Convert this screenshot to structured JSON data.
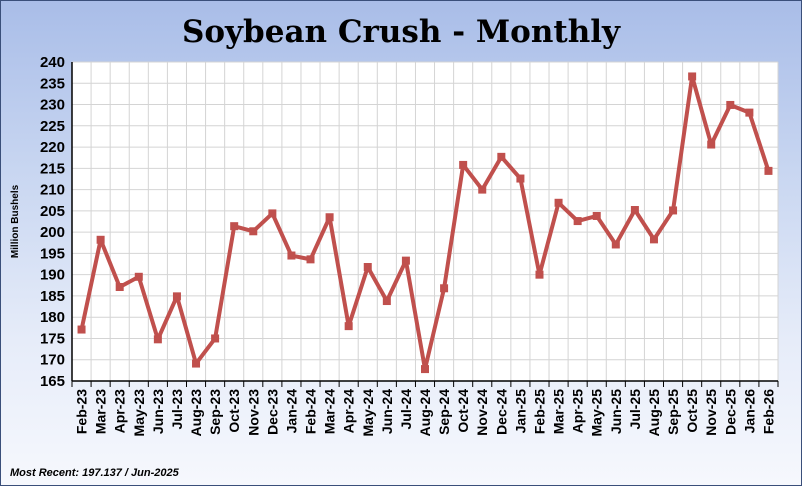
{
  "chart_data": {
    "type": "line",
    "title": "Soybean Crush - Monthly",
    "xlabel": "",
    "ylabel": "Million Bushels",
    "ylim": [
      165,
      240
    ],
    "yticks": [
      165,
      170,
      175,
      180,
      185,
      190,
      195,
      200,
      205,
      210,
      215,
      220,
      225,
      230,
      235,
      240
    ],
    "grid": true,
    "legend": "none",
    "line_color": "#c0504d",
    "categories": [
      "Feb-23",
      "Mar-23",
      "Apr-23",
      "May-23",
      "Jun-23",
      "Jul-23",
      "Aug-23",
      "Sep-23",
      "Oct-23",
      "Nov-23",
      "Dec-23",
      "Jan-24",
      "Feb-24",
      "Mar-24",
      "Apr-24",
      "May-24",
      "Jun-24",
      "Jul-24",
      "Aug-24",
      "Sep-24",
      "Oct-24",
      "Nov-24",
      "Dec-24",
      "Jan-25",
      "Feb-25",
      "Mar-25",
      "Apr-25",
      "May-25",
      "Jun-25",
      "Jul-25",
      "Aug-25",
      "Sep-25",
      "Oct-25",
      "Nov-25",
      "Dec-25",
      "Jan-26",
      "Feb-26"
    ],
    "series": [
      {
        "values": [
          177.1,
          198.2,
          187.1,
          189.5,
          174.8,
          184.9,
          169.1,
          175.0,
          201.4,
          200.2,
          204.4,
          194.5,
          193.6,
          203.5,
          177.9,
          191.8,
          183.8,
          193.3,
          167.8,
          186.8,
          215.8,
          210.0,
          217.7,
          212.6,
          190.0,
          206.9,
          202.6,
          203.8,
          197.1,
          205.2,
          198.3,
          205.1,
          236.6,
          220.6,
          229.9,
          228.1,
          214.4
        ]
      }
    ],
    "footnote": "Most Recent: 197.137 / Jun-2025"
  }
}
